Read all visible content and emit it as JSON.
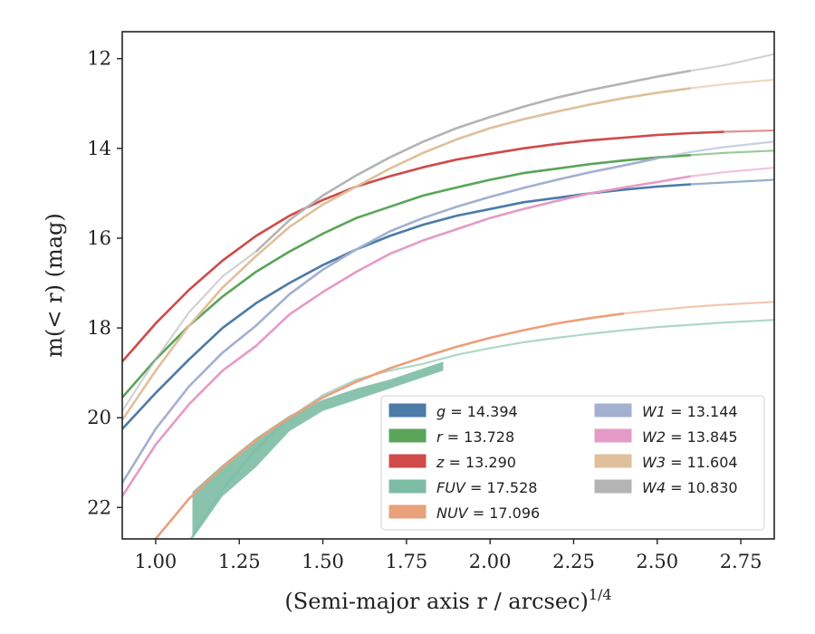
{
  "chart_data": {
    "type": "line",
    "xlabel": "(Semi-major axis r / arcsec)",
    "xlabel_superscript": "1/4",
    "ylabel": "m(< r) (mag)",
    "xlim": [
      0.9,
      2.85
    ],
    "ylim": [
      22.7,
      11.4
    ],
    "y_inverted": true,
    "x_ticks": [
      "1.00",
      "1.25",
      "1.50",
      "1.75",
      "2.00",
      "2.25",
      "2.50",
      "2.75"
    ],
    "y_ticks": [
      "12",
      "14",
      "16",
      "18",
      "20",
      "22"
    ],
    "grid": false,
    "legend_position": "lower-right",
    "series": [
      {
        "name": "g = 14.394",
        "label_parts": [
          "g",
          " = 14.394"
        ],
        "color": "#4c7ba8",
        "x": [
          0.9,
          1.0,
          1.1,
          1.2,
          1.3,
          1.4,
          1.5,
          1.6,
          1.7,
          1.8,
          1.9,
          2.0,
          2.1,
          2.2,
          2.3,
          2.4,
          2.5,
          2.6,
          2.7,
          2.85
        ],
        "y": [
          20.25,
          19.45,
          18.7,
          18.0,
          17.45,
          17.0,
          16.6,
          16.25,
          15.95,
          15.7,
          15.5,
          15.35,
          15.2,
          15.1,
          15.0,
          14.92,
          14.85,
          14.8,
          14.76,
          14.7
        ],
        "solid_xmax": 2.65
      },
      {
        "name": "r = 13.728",
        "label_parts": [
          "r",
          " = 13.728"
        ],
        "color": "#5aa55a",
        "x": [
          0.9,
          1.0,
          1.1,
          1.2,
          1.3,
          1.4,
          1.5,
          1.6,
          1.7,
          1.8,
          1.9,
          2.0,
          2.1,
          2.2,
          2.3,
          2.4,
          2.5,
          2.6,
          2.7,
          2.85
        ],
        "y": [
          19.55,
          18.7,
          17.95,
          17.3,
          16.75,
          16.3,
          15.9,
          15.55,
          15.3,
          15.05,
          14.87,
          14.7,
          14.55,
          14.45,
          14.35,
          14.27,
          14.2,
          14.15,
          14.1,
          14.05
        ],
        "solid_xmax": 2.68
      },
      {
        "name": "z = 13.290",
        "label_parts": [
          "z",
          " = 13.290"
        ],
        "color": "#d04a4a",
        "x": [
          0.9,
          1.0,
          1.1,
          1.2,
          1.3,
          1.4,
          1.5,
          1.6,
          1.7,
          1.8,
          1.9,
          2.0,
          2.1,
          2.2,
          2.3,
          2.4,
          2.5,
          2.6,
          2.7,
          2.85
        ],
        "y": [
          18.75,
          17.9,
          17.15,
          16.5,
          15.95,
          15.5,
          15.15,
          14.85,
          14.62,
          14.42,
          14.25,
          14.12,
          14.0,
          13.9,
          13.82,
          13.76,
          13.7,
          13.66,
          13.63,
          13.6
        ],
        "solid_xmax": 2.7
      },
      {
        "name": "FUV = 17.528",
        "label_parts": [
          "FUV",
          " = 17.528"
        ],
        "color": "#7cbca5",
        "x": [
          1.1,
          1.2,
          1.3,
          1.4,
          1.5,
          1.6,
          1.7,
          1.8,
          1.9,
          2.0,
          2.1,
          2.2,
          2.3,
          2.4,
          2.5,
          2.6,
          2.7,
          2.85
        ],
        "y": [
          22.75,
          21.6,
          20.7,
          20.0,
          19.5,
          19.15,
          18.95,
          18.8,
          18.6,
          18.45,
          18.32,
          18.22,
          18.13,
          18.05,
          17.98,
          17.93,
          17.88,
          17.82
        ],
        "band_x": [
          1.11,
          1.2,
          1.3,
          1.4,
          1.5,
          1.6,
          1.7,
          1.8,
          1.86
        ],
        "band_upper": [
          21.65,
          21.05,
          20.45,
          19.95,
          19.6,
          19.35,
          19.15,
          18.9,
          18.75
        ],
        "band_lower": [
          22.7,
          21.75,
          21.1,
          20.3,
          19.85,
          19.6,
          19.35,
          19.1,
          18.95
        ]
      },
      {
        "name": "NUV = 17.096",
        "label_parts": [
          "NUV",
          " = 17.096"
        ],
        "color": "#eaa07a",
        "x": [
          1.0,
          1.1,
          1.2,
          1.3,
          1.4,
          1.5,
          1.6,
          1.7,
          1.8,
          1.9,
          2.0,
          2.1,
          2.2,
          2.3,
          2.4,
          2.5,
          2.6,
          2.7,
          2.85
        ],
        "y": [
          22.7,
          21.8,
          21.1,
          20.5,
          20.0,
          19.55,
          19.2,
          18.9,
          18.65,
          18.42,
          18.22,
          18.05,
          17.9,
          17.78,
          17.68,
          17.6,
          17.53,
          17.48,
          17.42
        ],
        "solid_xmax": 2.4
      },
      {
        "name": "W1 = 13.144",
        "label_parts": [
          "W1",
          " = 13.144"
        ],
        "color": "#a4b0d0",
        "x": [
          0.9,
          1.0,
          1.1,
          1.2,
          1.3,
          1.4,
          1.5,
          1.6,
          1.7,
          1.8,
          1.9,
          2.0,
          2.1,
          2.2,
          2.3,
          2.4,
          2.5,
          2.6,
          2.7,
          2.85
        ],
        "y": [
          21.45,
          20.25,
          19.3,
          18.55,
          17.95,
          17.25,
          16.7,
          16.25,
          15.85,
          15.55,
          15.3,
          15.08,
          14.88,
          14.7,
          14.53,
          14.38,
          14.22,
          14.08,
          13.97,
          13.85
        ],
        "solid_xmax": 2.55
      },
      {
        "name": "W2 = 13.845",
        "label_parts": [
          "W2",
          " = 13.845"
        ],
        "color": "#e59bc5",
        "x": [
          0.9,
          1.0,
          1.1,
          1.2,
          1.3,
          1.4,
          1.5,
          1.6,
          1.7,
          1.8,
          1.9,
          2.0,
          2.1,
          2.2,
          2.3,
          2.4,
          2.5,
          2.6,
          2.7,
          2.85
        ],
        "y": [
          21.75,
          20.6,
          19.7,
          18.95,
          18.4,
          17.7,
          17.2,
          16.75,
          16.35,
          16.05,
          15.8,
          15.55,
          15.35,
          15.17,
          15.0,
          14.87,
          14.75,
          14.62,
          14.53,
          14.43
        ],
        "solid_xmax": 2.6
      },
      {
        "name": "W3 = 11.604",
        "label_parts": [
          "W3",
          " = 11.604"
        ],
        "color": "#dfc09a",
        "x": [
          0.9,
          1.0,
          1.1,
          1.2,
          1.3,
          1.4,
          1.5,
          1.6,
          1.7,
          1.8,
          1.9,
          2.0,
          2.1,
          2.2,
          2.3,
          2.4,
          2.5,
          2.6,
          2.7,
          2.85
        ],
        "y": [
          20.05,
          18.95,
          17.95,
          17.1,
          16.4,
          15.75,
          15.25,
          14.85,
          14.45,
          14.1,
          13.8,
          13.55,
          13.35,
          13.18,
          13.02,
          12.88,
          12.76,
          12.66,
          12.57,
          12.47
        ],
        "solid_xmax": 2.65
      },
      {
        "name": "W4 = 10.830",
        "label_parts": [
          "W4",
          " = 10.830"
        ],
        "color": "#b4b4b4",
        "x": [
          0.9,
          1.0,
          1.1,
          1.2,
          1.3,
          1.4,
          1.5,
          1.6,
          1.7,
          1.8,
          1.9,
          2.0,
          2.1,
          2.2,
          2.3,
          2.4,
          2.5,
          2.6,
          2.7,
          2.85
        ],
        "y": [
          19.85,
          18.7,
          17.65,
          16.85,
          16.3,
          15.6,
          15.05,
          14.6,
          14.2,
          13.85,
          13.55,
          13.3,
          13.07,
          12.87,
          12.7,
          12.55,
          12.4,
          12.27,
          12.15,
          11.9
        ],
        "solid_xmin": 1.3,
        "solid_xmax": 2.66
      }
    ]
  }
}
